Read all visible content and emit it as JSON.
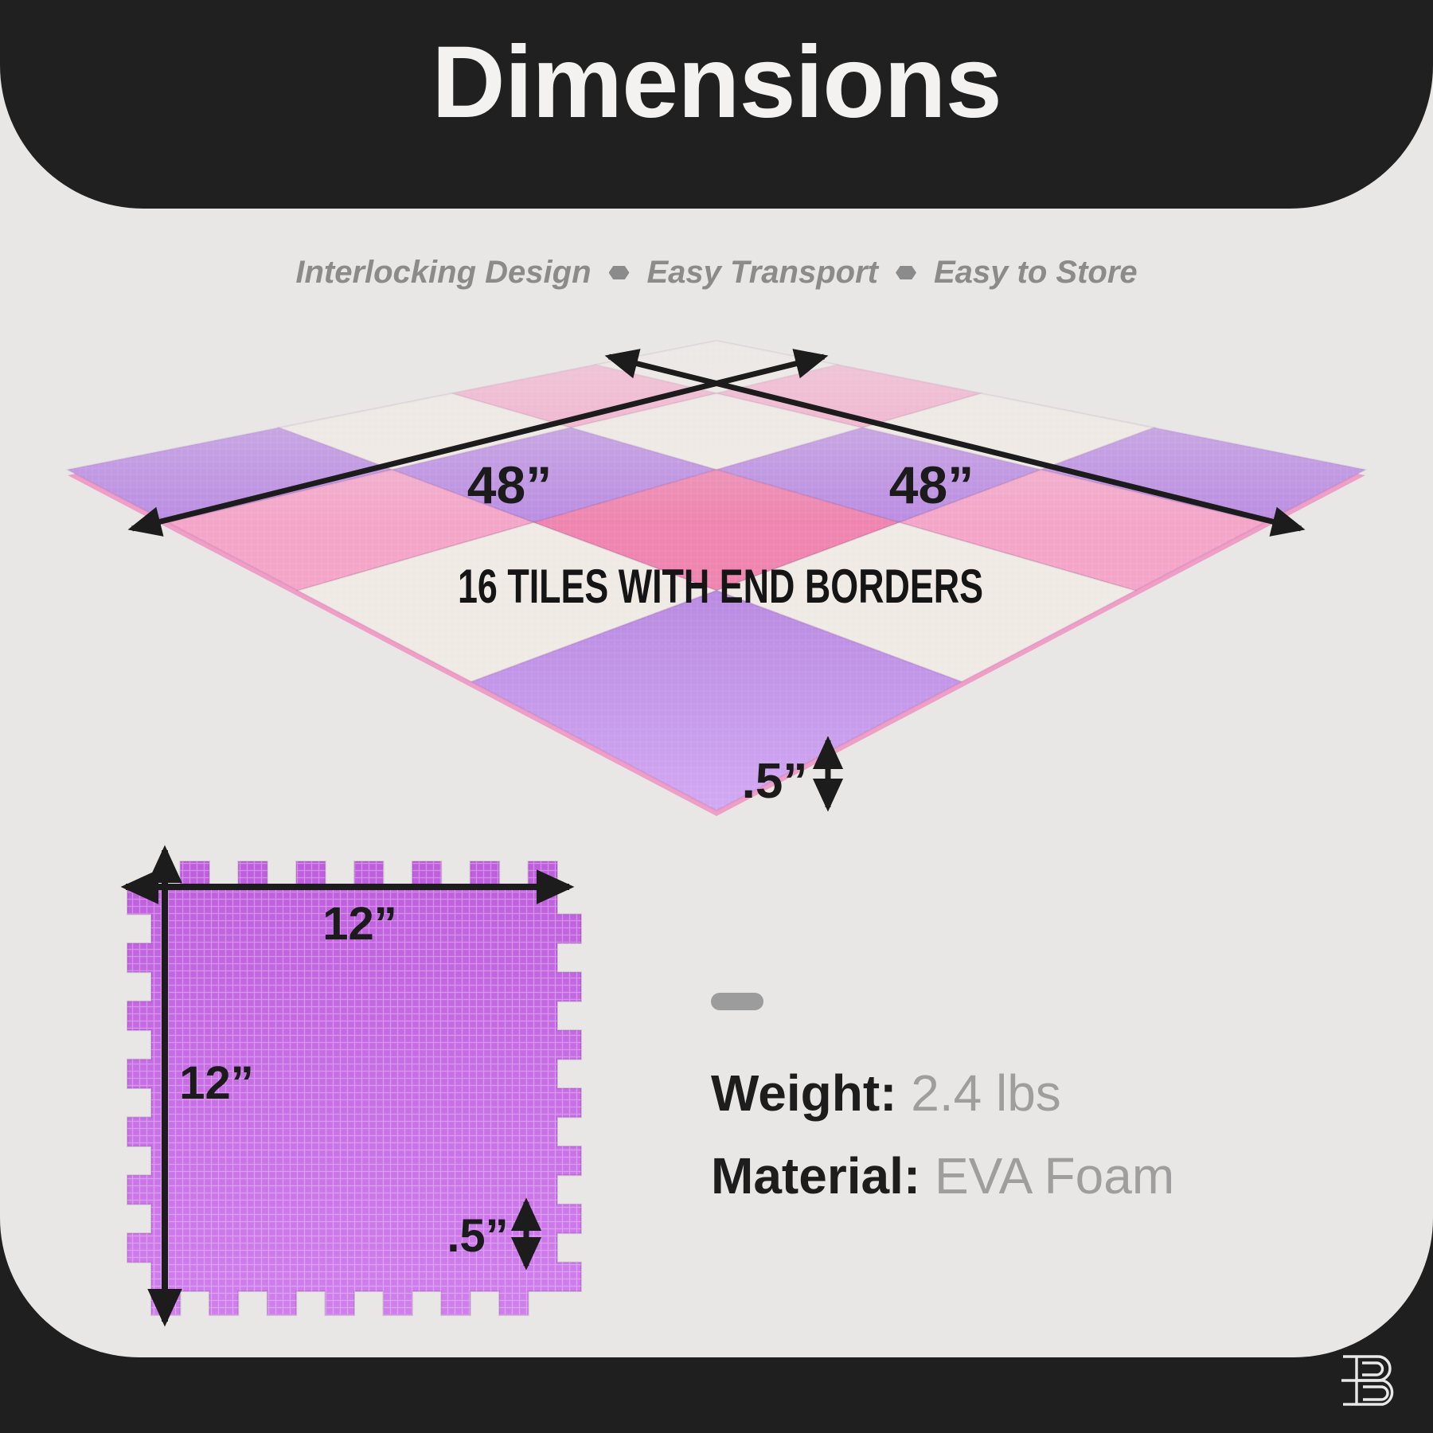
{
  "header": {
    "title": "Dimensions"
  },
  "subtitle": {
    "items": [
      "Interlocking Design",
      "Easy Transport",
      "Easy to Store"
    ]
  },
  "mat": {
    "label_left": "48”",
    "label_right": "48”",
    "caption": "16 TILES WITH END BORDERS",
    "thickness_label": ".5”",
    "colors": {
      "white": "#f0eae5",
      "pink": "#f4a5c8",
      "rose": "#ee84af",
      "purple": "#ba8ce2",
      "purple_near": "gradientNear",
      "edge_pink": "#ef9fc7"
    },
    "tiles": [
      [
        "white",
        "pink",
        "white",
        "purple"
      ],
      [
        "pink",
        "white",
        "purple",
        "pink"
      ],
      [
        "white",
        "purple",
        "rose",
        "white"
      ],
      [
        "purple",
        "pink",
        "white",
        "purple_near"
      ]
    ]
  },
  "tile": {
    "width_label": "12”",
    "height_label": "12”",
    "thickness_label": ".5”",
    "color_top": "#bf5edd",
    "color_bottom": "#d07fee"
  },
  "specs": {
    "weight_label": "Weight:",
    "weight_value": "2.4 lbs",
    "material_label": "Material:",
    "material_value": "EVA Foam"
  },
  "theme": {
    "background_black": "#202020",
    "panel_gray": "#e9e7e6",
    "text_dark": "#1c1c1c",
    "text_gray": "#8b8b8b"
  },
  "icons": {
    "bullet": "hexagon-bullet-icon",
    "logo": "brand-b-logo"
  }
}
